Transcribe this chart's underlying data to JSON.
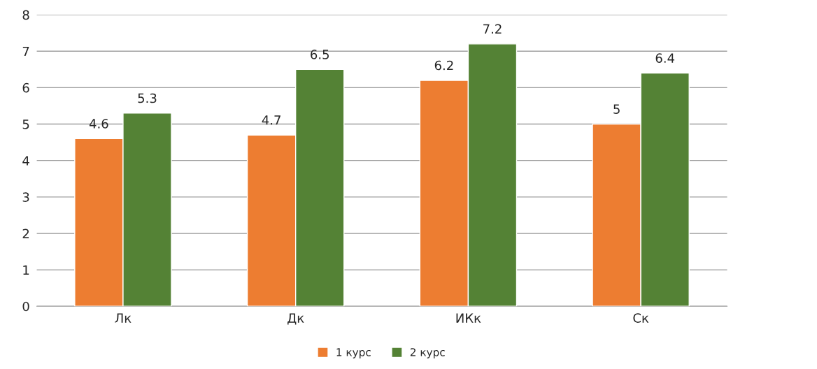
{
  "chart_data": {
    "type": "bar",
    "categories": [
      "Лк",
      "Дк",
      "ИКк",
      "Ск"
    ],
    "series": [
      {
        "name": "1 курс",
        "color": "#ed7d31",
        "values": [
          4.6,
          4.7,
          6.2,
          5
        ]
      },
      {
        "name": "2 курс",
        "color": "#548235",
        "values": [
          5.3,
          6.5,
          7.2,
          6.4
        ]
      }
    ],
    "ylim": [
      0,
      8
    ],
    "yticks": [
      0,
      1,
      2,
      3,
      4,
      5,
      6,
      7,
      8
    ],
    "grid": "y",
    "legend": "bottom",
    "data_labels": true
  }
}
